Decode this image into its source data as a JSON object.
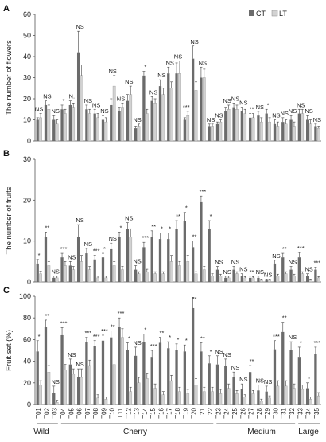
{
  "legend": {
    "items": [
      {
        "label": "CT",
        "color": "#6b6b6b"
      },
      {
        "label": "LT",
        "color": "#d2d2d2"
      }
    ],
    "placement": "top-right"
  },
  "group_labels": [
    "Wild",
    "Cherry",
    "Medium",
    "Large"
  ],
  "chart_data": [
    {
      "type": "bar",
      "panel_label": "A",
      "ylabel": "The number of flowers",
      "ylim": [
        0,
        60
      ],
      "yticks": [
        0,
        10,
        20,
        30,
        40,
        50,
        60
      ],
      "categories": [
        "T01",
        "T02",
        "T03",
        "T04",
        "T05",
        "T06",
        "T07",
        "T08",
        "T09",
        "T10",
        "T11",
        "T12",
        "T13",
        "T14",
        "T15",
        "T16",
        "T17",
        "T18",
        "T19",
        "T20",
        "T21",
        "T22",
        "T23",
        "T24",
        "T25",
        "T26",
        "T27",
        "T28",
        "T29",
        "T30",
        "T31",
        "T32",
        "T33",
        "T34",
        "T35"
      ],
      "series": [
        {
          "name": "CT",
          "values": [
            10,
            17,
            10,
            15,
            17,
            42,
            15,
            13,
            10,
            17,
            14,
            19,
            6,
            31,
            19,
            26,
            32,
            32,
            10,
            39,
            30,
            7,
            8,
            14,
            16,
            14,
            11,
            12,
            13,
            8,
            9,
            10,
            13,
            10,
            7
          ],
          "errors": [
            1,
            2,
            2,
            2,
            2,
            10,
            2,
            2,
            2,
            3,
            2,
            3,
            1,
            2,
            2,
            3,
            3,
            5,
            1,
            6,
            5,
            1,
            1,
            2,
            2,
            2,
            2,
            2,
            2,
            2,
            2,
            2,
            2,
            2,
            1
          ]
        },
        {
          "name": "LT",
          "values": [
            11,
            15,
            8,
            13,
            16,
            31,
            13,
            11,
            9,
            26,
            16,
            22,
            7,
            13,
            18,
            22,
            25,
            32,
            12,
            24,
            30,
            7,
            9,
            15,
            15,
            13,
            11,
            9,
            9,
            7,
            8,
            7,
            13,
            8,
            6
          ],
          "errors": [
            2,
            2,
            2,
            2,
            2,
            5,
            2,
            2,
            2,
            5,
            2,
            4,
            1,
            2,
            2,
            3,
            3,
            6,
            2,
            4,
            4,
            1,
            1,
            2,
            2,
            2,
            2,
            2,
            2,
            2,
            2,
            2,
            2,
            2,
            1
          ]
        }
      ],
      "annotations": [
        "NS",
        "NS",
        "NS",
        "*",
        "N.",
        "NS",
        "NS",
        "NS",
        "NS",
        "NS",
        "NS",
        "NS",
        "NS",
        "*",
        "NS",
        "NS",
        "NS",
        "NS",
        "***",
        "NS",
        "NS",
        "NS",
        "NS",
        "NS",
        "NS",
        "NS",
        "**",
        "NS",
        "*",
        "NS",
        "NS",
        "NS",
        "NS",
        "NS",
        "NS"
      ]
    },
    {
      "type": "bar",
      "panel_label": "B",
      "ylabel": "The number of fruits",
      "ylim": [
        0,
        30
      ],
      "yticks": [
        0,
        10,
        20,
        30
      ],
      "categories": [
        "T01",
        "T02",
        "T03",
        "T04",
        "T05",
        "T06",
        "T07",
        "T08",
        "T09",
        "T10",
        "T11",
        "T12",
        "T13",
        "T14",
        "T15",
        "T16",
        "T17",
        "T18",
        "T19",
        "T20",
        "T21",
        "T22",
        "T23",
        "T24",
        "T25",
        "T26",
        "T27",
        "T28",
        "T29",
        "T30",
        "T31",
        "T32",
        "T33",
        "T34",
        "T35"
      ],
      "series": [
        {
          "name": "CT",
          "values": [
            4.5,
            11,
            1,
            6,
            4,
            11,
            7,
            5.5,
            6,
            8,
            11,
            13,
            3,
            8.5,
            11,
            10.5,
            10.5,
            13,
            15,
            8.5,
            19.5,
            13,
            3,
            1,
            3,
            1.5,
            1,
            1,
            0.5,
            4.5,
            6,
            3,
            6,
            1.5,
            3
          ],
          "errors": [
            1,
            1.2,
            0.5,
            1,
            1,
            3,
            1.2,
            1,
            1,
            1.5,
            1.2,
            1.5,
            1,
            1.2,
            1.5,
            1.5,
            1.5,
            2,
            2,
            1.5,
            1.5,
            2,
            0.8,
            0.4,
            0.8,
            0.5,
            0.4,
            0.4,
            0.2,
            0.8,
            1,
            0.8,
            1.2,
            0.5,
            0.6
          ]
        },
        {
          "name": "LT",
          "values": [
            2,
            4,
            1,
            4,
            3,
            5,
            3,
            1,
            1,
            4,
            3,
            11,
            2,
            2.5,
            2,
            2,
            5,
            4,
            5,
            2,
            3,
            1.5,
            1.5,
            1,
            2,
            1,
            1,
            0.5,
            0.5,
            1.5,
            2,
            1.5,
            2,
            0.5,
            1
          ],
          "errors": [
            0.6,
            1,
            0.4,
            1,
            0.8,
            1.5,
            0.8,
            0.4,
            0.4,
            1,
            0.8,
            2,
            0.5,
            0.6,
            0.5,
            0.5,
            1.5,
            1,
            1.5,
            0.5,
            0.8,
            0.5,
            0.4,
            0.4,
            0.5,
            0.3,
            0.3,
            0.2,
            0.2,
            0.4,
            0.5,
            0.4,
            0.5,
            0.2,
            0.3
          ]
        }
      ],
      "annotations": [
        "*",
        "**",
        "NS",
        "***",
        "NS",
        "NS",
        "NS",
        "***",
        "*",
        "NS",
        "*",
        "NS",
        "NS",
        "***",
        "**",
        "*",
        "*",
        "**",
        "*",
        "**",
        "***",
        "*",
        "NS",
        "NS",
        "NS",
        "NS",
        "**",
        "NS",
        "NS",
        "NS",
        "**",
        "NS",
        "***",
        "NS",
        "***"
      ]
    },
    {
      "type": "bar",
      "panel_label": "C",
      "ylabel": "Fruit set (%)",
      "ylim": [
        0,
        100
      ],
      "yticks": [
        0,
        20,
        40,
        60,
        80,
        100
      ],
      "categories": [
        "T01",
        "T02",
        "T03",
        "T04",
        "T05",
        "T06",
        "T07",
        "T08",
        "T09",
        "T10",
        "T11",
        "T12",
        "T13",
        "T14",
        "T15",
        "T16",
        "T17",
        "T18",
        "T19",
        "T20",
        "T21",
        "T22",
        "T23",
        "T24",
        "T25",
        "T26",
        "T27",
        "T28",
        "T29",
        "T30",
        "T31",
        "T32",
        "T33",
        "T34",
        "T35"
      ],
      "series": [
        {
          "name": "CT",
          "values": [
            49,
            72,
            11,
            64,
            37,
            25,
            58,
            54,
            59,
            62,
            72,
            50,
            45,
            58,
            44,
            57,
            52,
            50,
            49,
            89,
            49,
            38,
            37,
            36,
            25,
            14,
            30,
            13,
            12,
            51,
            67,
            50,
            44,
            15,
            47
          ],
          "errors": [
            10,
            6,
            6,
            7,
            5,
            8,
            4,
            5,
            5,
            6,
            8,
            7,
            8,
            7,
            6,
            5,
            6,
            6,
            6,
            10,
            8,
            7,
            8,
            6,
            5,
            5,
            6,
            5,
            5,
            8,
            9,
            8,
            9,
            5,
            6
          ]
        },
        {
          "name": "LT",
          "values": [
            18,
            30,
            2,
            32,
            28,
            25,
            36,
            6,
            5,
            37,
            62,
            12,
            20,
            24,
            15,
            9,
            22,
            12,
            10,
            18,
            12,
            12,
            10,
            15,
            10,
            7,
            10,
            3,
            6,
            17,
            17,
            15,
            14,
            5,
            8
          ],
          "errors": [
            4,
            6,
            2,
            5,
            5,
            8,
            5,
            3,
            2,
            6,
            8,
            4,
            5,
            5,
            4,
            3,
            5,
            4,
            4,
            6,
            4,
            4,
            4,
            4,
            3,
            2,
            3,
            2,
            2,
            5,
            5,
            4,
            4,
            2,
            3
          ]
        }
      ],
      "annotations": [
        "*",
        "**",
        "NS",
        "***",
        "NS",
        "NS",
        "***",
        "***",
        "***",
        "**",
        "***",
        "*",
        "NS",
        "*",
        "***",
        "**",
        "*",
        "*",
        "*",
        "**",
        "**",
        "*",
        "NS",
        "NS",
        "NS",
        "NS",
        "**",
        "NS",
        "NS",
        "***",
        "**",
        "NS",
        "*",
        "*",
        "***"
      ]
    }
  ]
}
